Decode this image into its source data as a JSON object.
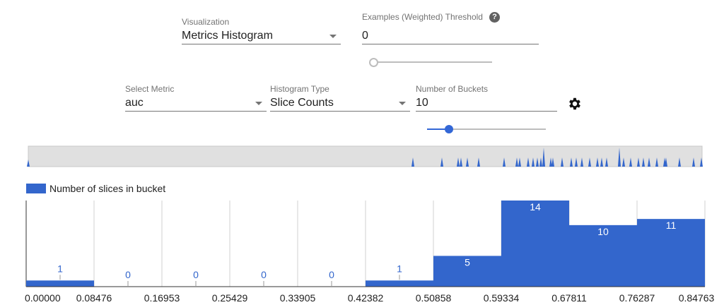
{
  "controls": {
    "visualization": {
      "label": "Visualization",
      "value": "Metrics Histogram"
    },
    "threshold": {
      "label": "Examples (Weighted) Threshold",
      "value": "0",
      "slider": 0,
      "help_icon": "help-circle-icon"
    },
    "metric": {
      "label": "Select Metric",
      "value": "auc"
    },
    "histogram_type": {
      "label": "Histogram Type",
      "value": "Slice Counts"
    },
    "buckets": {
      "label": "Number of Buckets",
      "value": "10",
      "slider": 0.22,
      "settings_icon": "gear-icon"
    }
  },
  "colors": {
    "bar": "#3366cc",
    "accent": "#3367d6"
  },
  "chart_data": {
    "type": "bar",
    "legend": "Number of slices in bucket",
    "legend_placement": "top-left",
    "x_ticks": [
      "0.00000",
      "0.08476",
      "0.16953",
      "0.25429",
      "0.33905",
      "0.42382",
      "0.50858",
      "0.59334",
      "0.67811",
      "0.76287",
      "0.84763"
    ],
    "values": [
      1,
      0,
      0,
      0,
      0,
      1,
      5,
      14,
      10,
      11
    ],
    "ylim": [
      0,
      14
    ],
    "grid": true
  }
}
